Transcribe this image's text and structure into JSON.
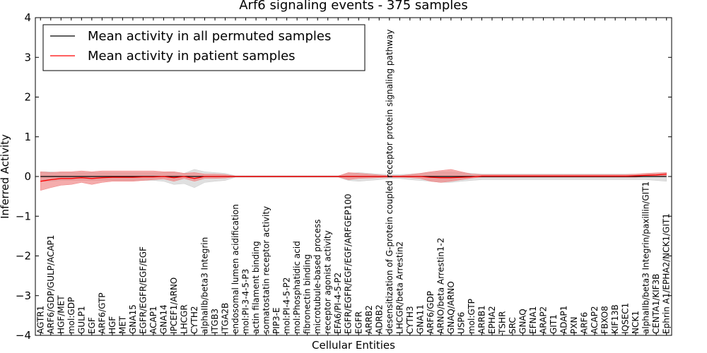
{
  "chart_data": {
    "type": "line",
    "title": "Arf6 signaling events - 375 samples",
    "xlabel": "Cellular Entities",
    "ylabel": "Inferred Activity",
    "ylim": [
      -4,
      4
    ],
    "yticks": [
      -4,
      -3,
      -2,
      -1,
      0,
      1,
      2,
      3,
      4
    ],
    "ytick_labels": [
      "−4",
      "−3",
      "−2",
      "−1",
      "0",
      "1",
      "2",
      "3",
      "4"
    ],
    "grid": false,
    "legend_position": "top-left",
    "categories": [
      "AGTR1",
      "ARF6/GDP/GULP/ACAP1",
      "HGF/MET",
      "mol:GDP",
      "GULP1",
      "EGF",
      "ARF6/GTP",
      "HGF",
      "MET",
      "GNA15",
      "EGFR/EGFR/EGF/EGF",
      "ACAP1",
      "GNA14",
      "IPCEF1/ARNO",
      "LHCGR",
      "CYTH2",
      "alphaIIb/beta3 Integrin",
      "ITGB3",
      "ITGA2B",
      "endosomal lumen acidification",
      "mol:PI-3-4-5-P3",
      "actin filament binding",
      "somatostatin receptor activity",
      "PIP3-E",
      "mol:PI-4-5-P2",
      "mol:Phosphatidic acid",
      "fibronectin binding",
      "microtubule-based process",
      "receptor agonist activity",
      "EFA6/PI-4-5-P2",
      "EGFR/EGFR/EGF/EGF/ARFGEP100",
      "EGFR",
      "ARRB2",
      "ADRB2",
      "desensitization of G-protein coupled receptor protein signaling pathway",
      "LHCGR/beta Arrestin2",
      "CYTH3",
      "GNA11",
      "ARF6/GDP",
      "ARNO/beta Arrestin1-2",
      "GNAQ/ARNO",
      "USP6",
      "mol:GTP",
      "ARRB1",
      "EPHA2",
      "TSHR",
      "SRC",
      "GNAQ",
      "EFNA1",
      "ARAP2",
      "GIT1",
      "ADAP1",
      "PXN",
      "ARF6",
      "ACAP2",
      "FBXO8",
      "KIF13B",
      "IQSEC1",
      "NCK1",
      "alphaIIb/beta3 Integrin/paxillin/GIT1",
      "CENTA1/KIF3B",
      "Ephrin A1/EPHA2/NCK1/GIT1"
    ],
    "series": [
      {
        "name": "Mean activity in all permuted samples",
        "color": "#000000",
        "values": [
          0.0,
          0.0,
          0.0,
          0.0,
          0.0,
          0.0,
          0.0,
          0.0,
          0.0,
          0.0,
          0.0,
          0.0,
          0.0,
          0.0,
          0.0,
          0.0,
          0.0,
          0.0,
          0.0,
          0.0,
          0.0,
          0.0,
          0.0,
          0.0,
          0.0,
          0.0,
          0.0,
          0.0,
          0.0,
          0.0,
          0.0,
          0.0,
          0.0,
          0.0,
          0.0,
          0.0,
          0.0,
          0.0,
          0.0,
          0.0,
          0.0,
          0.0,
          0.0,
          0.0,
          0.0,
          0.0,
          0.0,
          0.0,
          0.0,
          0.0,
          0.0,
          0.0,
          0.0,
          0.0,
          0.0,
          0.0,
          0.0,
          0.0,
          0.0,
          0.0,
          0.0,
          0.0
        ],
        "band_lower": [
          -0.12,
          -0.12,
          -0.1,
          -0.1,
          -0.1,
          -0.1,
          -0.1,
          -0.1,
          -0.1,
          -0.1,
          -0.1,
          -0.1,
          -0.12,
          -0.2,
          -0.18,
          -0.28,
          -0.15,
          -0.12,
          -0.1,
          -0.02,
          -0.02,
          -0.02,
          -0.02,
          -0.02,
          -0.02,
          -0.02,
          -0.02,
          -0.02,
          -0.02,
          -0.02,
          -0.1,
          -0.12,
          -0.1,
          -0.08,
          -0.05,
          -0.05,
          -0.08,
          -0.1,
          -0.12,
          -0.15,
          -0.15,
          -0.12,
          -0.1,
          -0.08,
          -0.08,
          -0.08,
          -0.08,
          -0.08,
          -0.08,
          -0.08,
          -0.08,
          -0.08,
          -0.08,
          -0.08,
          -0.08,
          -0.08,
          -0.08,
          -0.08,
          -0.08,
          -0.08,
          -0.1,
          -0.12
        ],
        "band_upper": [
          0.12,
          0.12,
          0.1,
          0.1,
          0.1,
          0.1,
          0.1,
          0.1,
          0.1,
          0.1,
          0.1,
          0.1,
          0.1,
          0.12,
          0.08,
          0.18,
          0.12,
          0.1,
          0.08,
          0.02,
          0.02,
          0.02,
          0.02,
          0.02,
          0.02,
          0.02,
          0.02,
          0.02,
          0.02,
          0.02,
          0.08,
          0.1,
          0.08,
          0.06,
          0.05,
          0.05,
          0.06,
          0.08,
          0.1,
          0.12,
          0.12,
          0.1,
          0.08,
          0.06,
          0.06,
          0.06,
          0.06,
          0.06,
          0.06,
          0.06,
          0.06,
          0.06,
          0.06,
          0.06,
          0.06,
          0.06,
          0.06,
          0.06,
          0.06,
          0.06,
          0.08,
          0.1
        ],
        "band_color": "#cccccc"
      },
      {
        "name": "Mean activity in patient samples",
        "color": "#ff0000",
        "values": [
          -0.12,
          -0.08,
          -0.05,
          -0.05,
          -0.03,
          -0.05,
          -0.03,
          -0.02,
          -0.02,
          -0.02,
          -0.01,
          -0.01,
          0.0,
          -0.03,
          0.0,
          -0.05,
          0.0,
          0.0,
          0.0,
          0.0,
          0.0,
          0.0,
          0.0,
          0.0,
          0.0,
          0.0,
          0.0,
          0.0,
          0.0,
          0.0,
          0.0,
          0.0,
          0.0,
          0.0,
          0.0,
          0.0,
          0.0,
          0.0,
          -0.02,
          -0.03,
          -0.03,
          -0.02,
          -0.01,
          0.01,
          0.01,
          0.01,
          0.01,
          0.01,
          0.01,
          0.01,
          0.01,
          0.01,
          0.01,
          0.01,
          0.01,
          0.01,
          0.01,
          0.01,
          0.02,
          0.03,
          0.04,
          0.06
        ],
        "band_lower": [
          -0.35,
          -0.28,
          -0.22,
          -0.2,
          -0.15,
          -0.2,
          -0.15,
          -0.12,
          -0.12,
          -0.12,
          -0.1,
          -0.08,
          -0.06,
          -0.12,
          -0.05,
          -0.12,
          -0.05,
          -0.05,
          -0.04,
          -0.01,
          -0.01,
          -0.01,
          -0.01,
          -0.01,
          -0.01,
          -0.01,
          -0.01,
          -0.01,
          -0.01,
          -0.01,
          -0.08,
          -0.05,
          -0.04,
          -0.03,
          -0.02,
          -0.02,
          -0.03,
          -0.05,
          -0.12,
          -0.15,
          -0.12,
          -0.08,
          -0.04,
          -0.02,
          -0.02,
          -0.02,
          -0.02,
          -0.02,
          -0.02,
          -0.02,
          -0.02,
          -0.02,
          -0.02,
          -0.02,
          -0.02,
          -0.02,
          -0.02,
          -0.02,
          -0.02,
          0.0,
          0.0,
          0.02
        ],
        "band_upper": [
          0.12,
          0.1,
          0.12,
          0.12,
          0.14,
          0.12,
          0.14,
          0.14,
          0.14,
          0.14,
          0.14,
          0.14,
          0.12,
          0.12,
          0.08,
          0.1,
          0.06,
          0.06,
          0.05,
          0.01,
          0.01,
          0.01,
          0.01,
          0.01,
          0.01,
          0.01,
          0.01,
          0.01,
          0.01,
          0.01,
          0.1,
          0.08,
          0.06,
          0.04,
          0.02,
          0.02,
          0.05,
          0.08,
          0.12,
          0.15,
          0.18,
          0.12,
          0.06,
          0.05,
          0.05,
          0.05,
          0.05,
          0.05,
          0.05,
          0.05,
          0.05,
          0.05,
          0.05,
          0.05,
          0.05,
          0.05,
          0.05,
          0.05,
          0.06,
          0.08,
          0.09,
          0.1
        ],
        "band_color": "#f08080"
      }
    ]
  }
}
